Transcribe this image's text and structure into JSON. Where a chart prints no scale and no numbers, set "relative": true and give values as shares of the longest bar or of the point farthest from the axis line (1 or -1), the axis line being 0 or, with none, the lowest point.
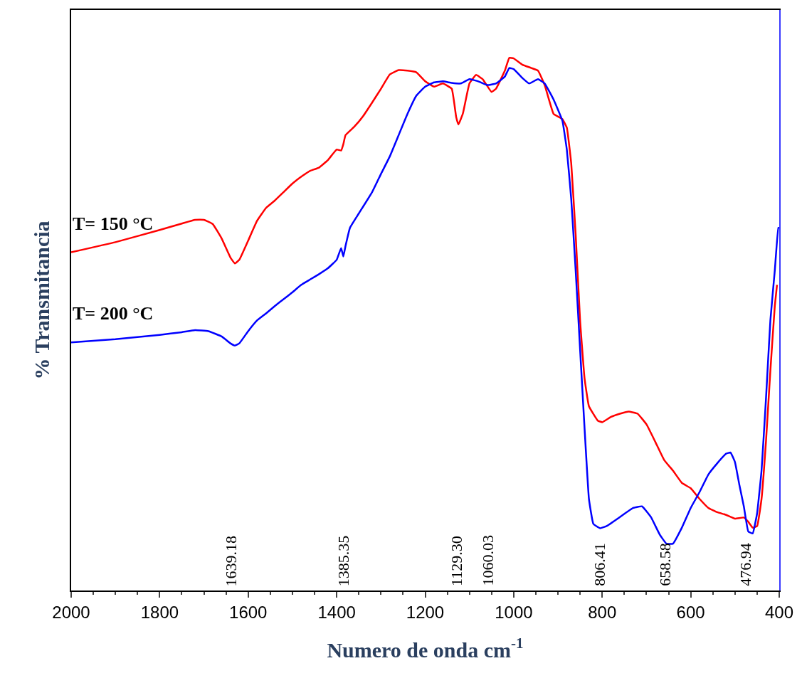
{
  "chart_data": {
    "type": "line",
    "relative": true,
    "xlabel": "Numero de onda cm$^{-1}$",
    "ylabel": "% Transmitancia",
    "xlim": [
      2000,
      400
    ],
    "xticks": [
      2000,
      1800,
      1600,
      1400,
      1200,
      1000,
      800,
      600,
      400
    ],
    "legend": false,
    "marker": "none",
    "line_style": "solid",
    "series": [
      {
        "name": "T= 150 °C",
        "color": "#ff0000",
        "x": [
          2000,
          1900,
          1800,
          1750,
          1720,
          1700,
          1680,
          1660,
          1640,
          1630,
          1620,
          1600,
          1580,
          1560,
          1540,
          1520,
          1500,
          1480,
          1460,
          1440,
          1420,
          1400,
          1390,
          1385,
          1380,
          1360,
          1340,
          1320,
          1300,
          1280,
          1260,
          1240,
          1220,
          1200,
          1180,
          1160,
          1140,
          1130,
          1125,
          1115,
          1100,
          1085,
          1070,
          1050,
          1040,
          1020,
          1010,
          1000,
          980,
          960,
          945,
          930,
          910,
          890,
          880,
          870,
          860,
          850,
          840,
          830,
          810,
          800,
          780,
          760,
          740,
          720,
          700,
          680,
          660,
          640,
          620,
          600,
          580,
          560,
          540,
          520,
          500,
          480,
          470,
          460,
          450,
          440,
          430,
          420,
          410,
          405
        ],
        "values": [
          0.635,
          0.654,
          0.677,
          0.689,
          0.696,
          0.696,
          0.688,
          0.661,
          0.625,
          0.614,
          0.621,
          0.657,
          0.694,
          0.718,
          0.732,
          0.748,
          0.764,
          0.777,
          0.788,
          0.794,
          0.808,
          0.828,
          0.826,
          0.838,
          0.855,
          0.871,
          0.891,
          0.916,
          0.942,
          0.969,
          0.977,
          0.976,
          0.973,
          0.956,
          0.946,
          0.952,
          0.942,
          0.889,
          0.875,
          0.895,
          0.952,
          0.968,
          0.96,
          0.936,
          0.942,
          0.976,
          1.0,
          0.999,
          0.987,
          0.981,
          0.976,
          0.949,
          0.895,
          0.885,
          0.869,
          0.802,
          0.668,
          0.507,
          0.399,
          0.346,
          0.319,
          0.316,
          0.326,
          0.332,
          0.336,
          0.332,
          0.312,
          0.279,
          0.245,
          0.225,
          0.202,
          0.192,
          0.172,
          0.155,
          0.147,
          0.142,
          0.135,
          0.137,
          0.129,
          0.118,
          0.121,
          0.172,
          0.279,
          0.413,
          0.534,
          0.574
        ]
      },
      {
        "name": "T= 200 °C",
        "color": "#0000ff",
        "x": [
          2000,
          1900,
          1800,
          1750,
          1720,
          1690,
          1660,
          1640,
          1630,
          1620,
          1600,
          1580,
          1560,
          1540,
          1520,
          1500,
          1480,
          1460,
          1440,
          1420,
          1400,
          1390,
          1385,
          1380,
          1370,
          1350,
          1320,
          1300,
          1280,
          1260,
          1240,
          1220,
          1200,
          1180,
          1160,
          1140,
          1120,
          1100,
          1080,
          1060,
          1040,
          1020,
          1010,
          1000,
          980,
          965,
          945,
          930,
          910,
          890,
          880,
          870,
          860,
          850,
          840,
          830,
          820,
          805,
          790,
          760,
          730,
          710,
          690,
          670,
          655,
          640,
          620,
          600,
          580,
          560,
          540,
          520,
          510,
          500,
          490,
          480,
          470,
          460,
          450,
          440,
          430,
          420,
          410,
          402,
          400
        ],
        "values": [
          0.466,
          0.472,
          0.48,
          0.485,
          0.489,
          0.487,
          0.477,
          0.464,
          0.46,
          0.464,
          0.487,
          0.507,
          0.52,
          0.534,
          0.547,
          0.56,
          0.574,
          0.584,
          0.594,
          0.605,
          0.621,
          0.643,
          0.627,
          0.647,
          0.681,
          0.708,
          0.748,
          0.782,
          0.815,
          0.855,
          0.895,
          0.929,
          0.946,
          0.954,
          0.956,
          0.953,
          0.952,
          0.96,
          0.956,
          0.949,
          0.952,
          0.965,
          0.981,
          0.979,
          0.962,
          0.952,
          0.96,
          0.952,
          0.922,
          0.882,
          0.828,
          0.735,
          0.601,
          0.453,
          0.306,
          0.172,
          0.125,
          0.117,
          0.121,
          0.138,
          0.155,
          0.158,
          0.138,
          0.105,
          0.088,
          0.088,
          0.118,
          0.155,
          0.185,
          0.218,
          0.239,
          0.257,
          0.259,
          0.241,
          0.198,
          0.158,
          0.111,
          0.107,
          0.145,
          0.225,
          0.359,
          0.507,
          0.601,
          0.681,
          0.681
        ]
      }
    ],
    "annotations": [
      "1639.18",
      "1385.35",
      "1129.30",
      "1060.03",
      "806.41",
      "658.58",
      "476.94"
    ]
  }
}
